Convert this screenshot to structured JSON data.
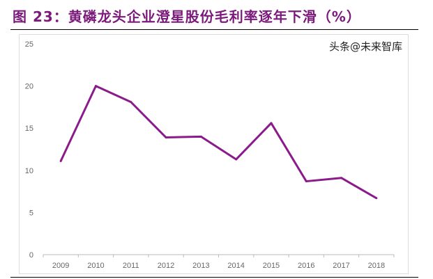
{
  "title": "图 23：黄磷龙头企业澄星股份毛利率逐年下滑（%）",
  "watermark": "头条@未来智库",
  "chart_data": {
    "type": "line",
    "title": "",
    "xlabel": "",
    "ylabel": "",
    "categories": [
      "2009",
      "2010",
      "2011",
      "2012",
      "2013",
      "2014",
      "2015",
      "2016",
      "2017",
      "2018"
    ],
    "values": [
      11.1,
      20.0,
      18.1,
      13.9,
      14.0,
      11.3,
      15.6,
      8.7,
      9.1,
      6.7
    ],
    "ylim": [
      0,
      25
    ],
    "yticks": [
      0,
      5,
      10,
      15,
      20,
      25
    ],
    "grid": false,
    "color": "#8b1a8b"
  }
}
